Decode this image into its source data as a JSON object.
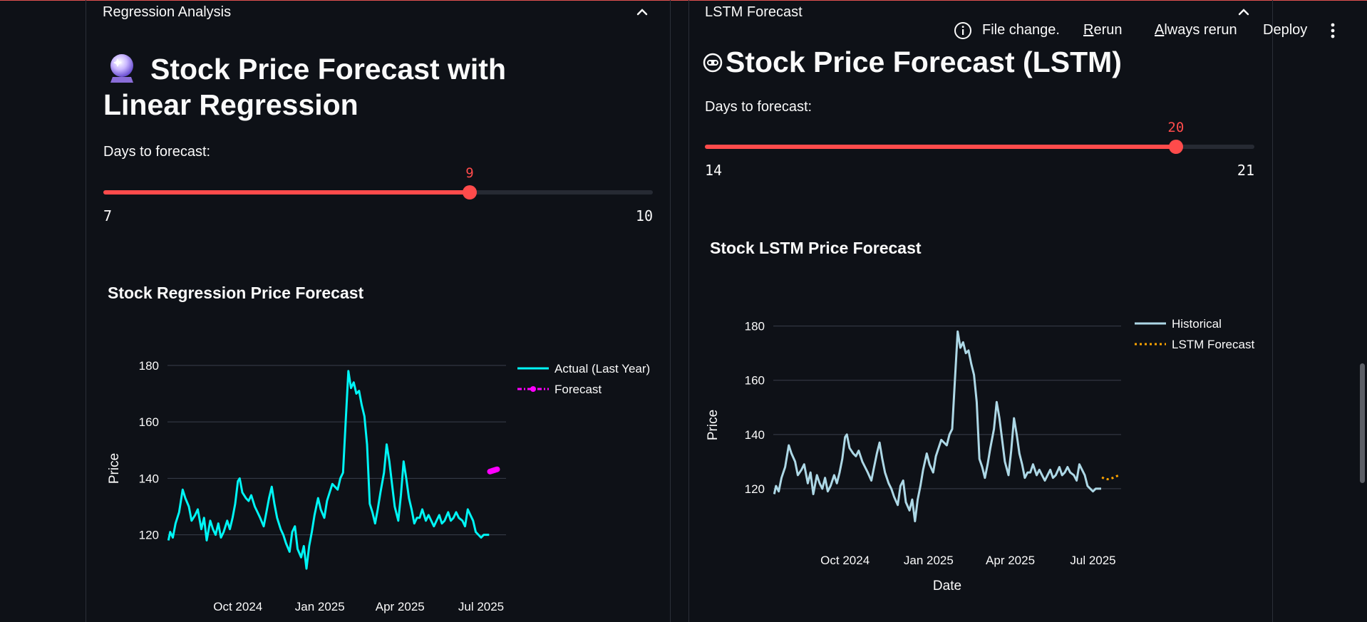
{
  "toolbar": {
    "status": "File change.",
    "rerun": {
      "accel": "R",
      "rest": "erun"
    },
    "always_rerun": {
      "accel": "A",
      "rest": "lways rerun"
    },
    "deploy": "Deploy"
  },
  "left": {
    "expander_label": "Regression Analysis",
    "page_title": "Stock Price Forecast with Linear Regression",
    "emoji_icon": "crystal-ball-icon",
    "slider": {
      "label": "Days to forecast:",
      "min": 7,
      "max": 10,
      "value": 9,
      "min_label": "7",
      "max_label": "10",
      "value_label": "9"
    },
    "chart_title": "Stock Regression Price Forecast"
  },
  "right": {
    "expander_label": "LSTM Forecast",
    "page_title": "Stock Price Forecast (LSTM)",
    "emoji_icon": "robot-face-icon",
    "slider": {
      "label": "Days to forecast:",
      "min": 14,
      "max": 21,
      "value": 20,
      "min_label": "14",
      "max_label": "21",
      "value_label": "20"
    },
    "chart_title": "Stock LSTM Price Forecast"
  },
  "colors": {
    "accent": "#ff4b4b",
    "background": "#0e1117",
    "cyan": "#00f5f5",
    "magenta": "#ff00ff",
    "lightblue": "#add8e6",
    "orange": "#ffa500"
  },
  "chart_data": [
    {
      "type": "line",
      "title": "Stock Regression Price Forecast",
      "xlabel": "",
      "ylabel": "Price",
      "yticks": [
        120,
        140,
        160,
        180
      ],
      "xticks": [
        "Oct 2024",
        "Jan 2025",
        "Apr 2025",
        "Jul 2025"
      ],
      "ylim": [
        105,
        182
      ],
      "xlim": [
        "2024-07-14",
        "2025-07-29"
      ],
      "legend": "top-right",
      "grid": true,
      "series": [
        {
          "name": "Actual (Last Year)",
          "color": "#00f5f5",
          "style": "solid",
          "x": [
            "2024-07-15",
            "2024-07-17",
            "2024-07-20",
            "2024-07-23",
            "2024-07-27",
            "2024-07-31",
            "2024-08-03",
            "2024-08-07",
            "2024-08-10",
            "2024-08-14",
            "2024-08-17",
            "2024-08-21",
            "2024-08-24",
            "2024-08-27",
            "2024-08-31",
            "2024-09-03",
            "2024-09-06",
            "2024-09-09",
            "2024-09-12",
            "2024-09-15",
            "2024-09-19",
            "2024-09-22",
            "2024-09-25",
            "2024-09-28",
            "2024-10-01",
            "2024-10-03",
            "2024-10-06",
            "2024-10-10",
            "2024-10-13",
            "2024-10-16",
            "2024-10-20",
            "2024-10-23",
            "2024-10-26",
            "2024-10-30",
            "2024-11-02",
            "2024-11-05",
            "2024-11-08",
            "2024-11-11",
            "2024-11-14",
            "2024-11-18",
            "2024-11-21",
            "2024-11-24",
            "2024-11-28",
            "2024-12-01",
            "2024-12-04",
            "2024-12-07",
            "2024-12-11",
            "2024-12-14",
            "2024-12-17",
            "2024-12-20",
            "2024-12-23",
            "2024-12-26",
            "2024-12-30",
            "2025-01-02",
            "2025-01-06",
            "2025-01-09",
            "2025-01-12",
            "2025-01-15",
            "2025-01-18",
            "2025-01-21",
            "2025-01-24",
            "2025-01-27",
            "2025-01-30",
            "2025-02-02",
            "2025-02-05",
            "2025-02-08",
            "2025-02-11",
            "2025-02-14",
            "2025-02-17",
            "2025-02-20",
            "2025-02-23",
            "2025-02-26",
            "2025-03-01",
            "2025-03-04",
            "2025-03-07",
            "2025-03-10",
            "2025-03-14",
            "2025-03-17",
            "2025-03-20",
            "2025-03-23",
            "2025-03-26",
            "2025-03-30",
            "2025-04-02",
            "2025-04-05",
            "2025-04-08",
            "2025-04-11",
            "2025-04-14",
            "2025-04-17",
            "2025-04-20",
            "2025-04-23",
            "2025-04-26",
            "2025-04-30",
            "2025-05-03",
            "2025-05-06",
            "2025-05-09",
            "2025-05-12",
            "2025-05-15",
            "2025-05-18",
            "2025-05-21",
            "2025-05-25",
            "2025-05-28",
            "2025-05-31",
            "2025-06-03",
            "2025-06-06",
            "2025-06-10",
            "2025-06-13",
            "2025-06-16",
            "2025-06-19",
            "2025-06-22",
            "2025-06-25",
            "2025-06-28",
            "2025-07-01",
            "2025-07-04",
            "2025-07-07",
            "2025-07-10"
          ],
          "y": [
            118,
            121,
            119,
            124,
            128,
            136,
            133,
            130,
            125,
            127,
            129,
            122,
            126,
            118,
            125,
            122,
            120,
            124,
            119,
            121,
            125,
            122,
            126,
            131,
            139,
            140,
            135,
            133,
            132,
            134,
            130,
            128,
            126,
            123,
            128,
            133,
            137,
            131,
            126,
            122,
            120,
            117,
            114,
            121,
            123,
            115,
            112,
            116,
            108,
            116,
            121,
            127,
            133,
            129,
            126,
            132,
            135,
            138,
            137,
            136,
            140,
            142,
            160,
            178,
            172,
            174,
            170,
            171,
            166,
            162,
            152,
            131,
            128,
            124,
            129,
            135,
            142,
            152,
            146,
            138,
            130,
            125,
            134,
            146,
            140,
            133,
            129,
            124,
            126,
            126,
            129,
            125,
            127,
            125,
            123,
            125,
            127,
            124,
            125,
            128,
            125,
            126,
            128,
            126,
            125,
            123,
            129,
            127,
            125,
            121,
            120,
            119,
            120,
            120,
            120
          ]
        },
        {
          "name": "Forecast",
          "color": "#ff00ff",
          "style": "dash-dot markers",
          "x": [
            "2025-07-11",
            "2025-07-12",
            "2025-07-13",
            "2025-07-14",
            "2025-07-15",
            "2025-07-16",
            "2025-07-17",
            "2025-07-18",
            "2025-07-19"
          ],
          "y": [
            142.4,
            142.5,
            142.6,
            142.7,
            142.8,
            142.9,
            143.0,
            143.1,
            143.2
          ]
        }
      ]
    },
    {
      "type": "line",
      "title": "Stock LSTM Price Forecast",
      "xlabel": "Date",
      "ylabel": "Price",
      "yticks": [
        120,
        140,
        160,
        180
      ],
      "xticks": [
        "Oct 2024",
        "Jan 2025",
        "Apr 2025",
        "Jul 2025"
      ],
      "ylim": [
        105,
        182
      ],
      "xlim": [
        "2024-07-14",
        "2025-08-01"
      ],
      "legend": "top-right",
      "grid": true,
      "series": [
        {
          "name": "Historical",
          "color": "#add8e6",
          "style": "solid",
          "x": [
            "2024-07-15",
            "2024-07-17",
            "2024-07-20",
            "2024-07-23",
            "2024-07-27",
            "2024-07-31",
            "2024-08-03",
            "2024-08-07",
            "2024-08-10",
            "2024-08-14",
            "2024-08-17",
            "2024-08-21",
            "2024-08-24",
            "2024-08-27",
            "2024-08-31",
            "2024-09-03",
            "2024-09-06",
            "2024-09-09",
            "2024-09-12",
            "2024-09-15",
            "2024-09-19",
            "2024-09-22",
            "2024-09-25",
            "2024-09-28",
            "2024-10-01",
            "2024-10-03",
            "2024-10-06",
            "2024-10-10",
            "2024-10-13",
            "2024-10-16",
            "2024-10-20",
            "2024-10-23",
            "2024-10-26",
            "2024-10-30",
            "2024-11-02",
            "2024-11-05",
            "2024-11-08",
            "2024-11-11",
            "2024-11-14",
            "2024-11-18",
            "2024-11-21",
            "2024-11-24",
            "2024-11-28",
            "2024-12-01",
            "2024-12-04",
            "2024-12-07",
            "2024-12-11",
            "2024-12-14",
            "2024-12-17",
            "2024-12-20",
            "2024-12-23",
            "2024-12-26",
            "2024-12-30",
            "2025-01-02",
            "2025-01-06",
            "2025-01-09",
            "2025-01-12",
            "2025-01-15",
            "2025-01-18",
            "2025-01-21",
            "2025-01-24",
            "2025-01-27",
            "2025-01-30",
            "2025-02-02",
            "2025-02-05",
            "2025-02-08",
            "2025-02-11",
            "2025-02-14",
            "2025-02-17",
            "2025-02-20",
            "2025-02-23",
            "2025-02-26",
            "2025-03-01",
            "2025-03-04",
            "2025-03-07",
            "2025-03-10",
            "2025-03-14",
            "2025-03-17",
            "2025-03-20",
            "2025-03-23",
            "2025-03-26",
            "2025-03-30",
            "2025-04-02",
            "2025-04-05",
            "2025-04-08",
            "2025-04-11",
            "2025-04-14",
            "2025-04-17",
            "2025-04-20",
            "2025-04-23",
            "2025-04-26",
            "2025-04-30",
            "2025-05-03",
            "2025-05-06",
            "2025-05-09",
            "2025-05-12",
            "2025-05-15",
            "2025-05-18",
            "2025-05-21",
            "2025-05-25",
            "2025-05-28",
            "2025-05-31",
            "2025-06-03",
            "2025-06-06",
            "2025-06-10",
            "2025-06-13",
            "2025-06-16",
            "2025-06-19",
            "2025-06-22",
            "2025-06-25",
            "2025-06-28",
            "2025-07-01",
            "2025-07-04",
            "2025-07-07",
            "2025-07-10"
          ],
          "y": [
            118,
            121,
            119,
            124,
            128,
            136,
            133,
            130,
            125,
            127,
            129,
            122,
            126,
            118,
            125,
            122,
            120,
            124,
            119,
            121,
            125,
            122,
            126,
            131,
            139,
            140,
            135,
            133,
            132,
            134,
            130,
            128,
            126,
            123,
            128,
            133,
            137,
            131,
            126,
            122,
            120,
            117,
            114,
            121,
            123,
            115,
            112,
            116,
            108,
            116,
            121,
            127,
            133,
            129,
            126,
            132,
            135,
            138,
            137,
            136,
            140,
            142,
            160,
            178,
            172,
            174,
            170,
            171,
            166,
            162,
            152,
            131,
            128,
            124,
            129,
            135,
            142,
            152,
            146,
            138,
            130,
            125,
            134,
            146,
            140,
            133,
            129,
            124,
            126,
            126,
            129,
            125,
            127,
            125,
            123,
            125,
            127,
            124,
            125,
            128,
            125,
            126,
            128,
            126,
            125,
            123,
            129,
            127,
            125,
            121,
            120,
            119,
            120,
            120,
            120
          ]
        },
        {
          "name": "LSTM Forecast",
          "color": "#ffa500",
          "style": "dotted",
          "x": [
            "2025-07-11",
            "2025-07-13",
            "2025-07-15",
            "2025-07-17",
            "2025-07-19",
            "2025-07-21",
            "2025-07-23",
            "2025-07-25",
            "2025-07-27",
            "2025-07-30"
          ],
          "y": [
            124.2,
            123.8,
            123.6,
            123.5,
            123.6,
            123.8,
            124.0,
            124.3,
            124.6,
            125.0
          ]
        }
      ]
    }
  ]
}
